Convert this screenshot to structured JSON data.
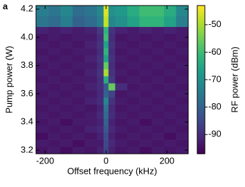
{
  "chart_data": {
    "type": "heatmap",
    "panel_label": "a",
    "xlabel": "Offset frequency (kHz)",
    "ylabel": "Pump power (W)",
    "colorbar_label": "RF power (dBm)",
    "colormap": "viridis",
    "xbins": [
      -230,
      -190,
      -150,
      -110,
      -70,
      -30,
      -8,
      8,
      30,
      70,
      110,
      150,
      190,
      230,
      270
    ],
    "ybins": [
      3.175,
      3.225,
      3.275,
      3.325,
      3.375,
      3.425,
      3.475,
      3.525,
      3.575,
      3.625,
      3.675,
      3.725,
      3.775,
      3.825,
      3.875,
      3.925,
      3.975,
      4.025,
      4.075,
      4.15,
      4.225
    ],
    "xlim": [
      -230,
      270
    ],
    "ylim": [
      3.175,
      4.225
    ],
    "xticks": [
      -200,
      0,
      200
    ],
    "yticks": [
      3.2,
      3.4,
      3.6,
      3.8,
      {
        "value": 4,
        "label": "4.0"
      },
      4.2
    ],
    "zlim": [
      -97,
      -43
    ],
    "zticks": [
      -50,
      -60,
      -70,
      -80,
      -90
    ],
    "z": [
      [
        -94,
        -93,
        -95,
        -93,
        -94,
        -92,
        -86,
        -92,
        -94,
        -93,
        -95,
        -93,
        -94,
        -93
      ],
      [
        -93,
        -94,
        -93,
        -95,
        -93,
        -93,
        -85,
        -91,
        -93,
        -94,
        -93,
        -94,
        -93,
        -94
      ],
      [
        -95,
        -93,
        -94,
        -93,
        -94,
        -92,
        -84,
        -92,
        -94,
        -93,
        -94,
        -93,
        -95,
        -93
      ],
      [
        -93,
        -94,
        -93,
        -94,
        -92,
        -91,
        -82,
        -91,
        -93,
        -94,
        -93,
        -94,
        -93,
        -94
      ],
      [
        -94,
        -93,
        -95,
        -93,
        -93,
        -92,
        -80,
        -92,
        -94,
        -93,
        -95,
        -93,
        -94,
        -93
      ],
      [
        -93,
        -94,
        -93,
        -94,
        -93,
        -91,
        -78,
        -90,
        -93,
        -94,
        -93,
        -94,
        -93,
        -94
      ],
      [
        -94,
        -93,
        -94,
        -93,
        -94,
        -92,
        -76,
        -91,
        -94,
        -93,
        -94,
        -93,
        -94,
        -93
      ],
      [
        -93,
        -94,
        -93,
        -94,
        -92,
        -90,
        -72,
        -89,
        -93,
        -94,
        -93,
        -94,
        -93,
        -94
      ],
      [
        -94,
        -93,
        -94,
        -93,
        -93,
        -91,
        -80,
        -86,
        -94,
        -93,
        -94,
        -93,
        -94,
        -93
      ],
      [
        -93,
        -94,
        -93,
        -94,
        -92,
        -90,
        -82,
        -56,
        -90,
        -94,
        -93,
        -94,
        -93,
        -94
      ],
      [
        -94,
        -93,
        -94,
        -93,
        -93,
        -90,
        -64,
        -88,
        -94,
        -93,
        -94,
        -93,
        -94,
        -93
      ],
      [
        -93,
        -94,
        -93,
        -94,
        -92,
        -89,
        -50,
        -89,
        -93,
        -94,
        -93,
        -94,
        -93,
        -94
      ],
      [
        -94,
        -93,
        -94,
        -93,
        -93,
        -90,
        -56,
        -90,
        -94,
        -93,
        -94,
        -93,
        -94,
        -93
      ],
      [
        -93,
        -94,
        -93,
        -94,
        -92,
        -89,
        -66,
        -89,
        -93,
        -94,
        -93,
        -94,
        -93,
        -94
      ],
      [
        -94,
        -93,
        -94,
        -93,
        -93,
        -90,
        -62,
        -90,
        -94,
        -93,
        -94,
        -93,
        -94,
        -93
      ],
      [
        -93,
        -94,
        -93,
        -94,
        -92,
        -89,
        -66,
        -89,
        -93,
        -94,
        -93,
        -94,
        -93,
        -94
      ],
      [
        -94,
        -93,
        -94,
        -93,
        -93,
        -90,
        -60,
        -90,
        -94,
        -93,
        -94,
        -93,
        -94,
        -93
      ],
      [
        -92,
        -93,
        -92,
        -93,
        -92,
        -88,
        -62,
        -89,
        -92,
        -93,
        -92,
        -93,
        -92,
        -93
      ],
      [
        -76,
        -78,
        -74,
        -80,
        -78,
        -74,
        -48,
        -72,
        -70,
        -66,
        -62,
        -62,
        -66,
        -74
      ],
      [
        -74,
        -76,
        -72,
        -78,
        -76,
        -72,
        -46,
        -70,
        -68,
        -64,
        -60,
        -60,
        -64,
        -72
      ]
    ]
  }
}
